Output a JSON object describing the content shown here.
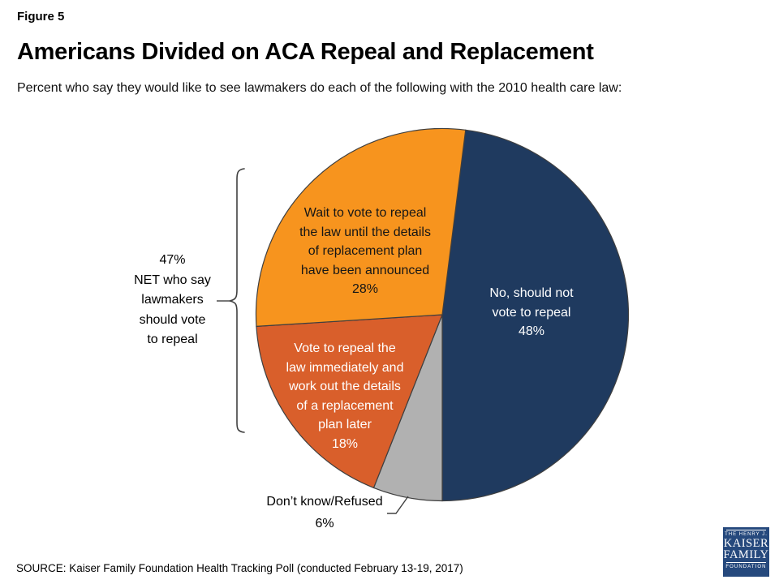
{
  "header": {
    "figure_label": "Figure 5",
    "title": "Americans Divided on ACA Repeal and Replacement",
    "subtitle": "Percent who say they would like to see lawmakers do each of the following with the 2010 health care law:"
  },
  "chart_data": {
    "type": "pie",
    "title": "Americans Divided on ACA Repeal and Replacement",
    "units": "percent",
    "direction": "clockwise",
    "start_angle_deg": 7.2,
    "stroke_color": "#3f3f3f",
    "slices": [
      {
        "id": "no-repeal",
        "label": "No, should not vote to repeal",
        "value": 48,
        "color": "#1F3A5F",
        "text_color": "#FFFFFF",
        "display": "No, should not\nvote to repeal\n48%"
      },
      {
        "id": "dont-know",
        "label": "Don’t know/Refused",
        "value": 6,
        "color": "#B1B1B1",
        "text_color": "#000000",
        "display": "Don’t know/Refused\n6%"
      },
      {
        "id": "repeal-immediately",
        "label": "Vote to repeal the law immediately and work out the details of a replacement plan later",
        "value": 18,
        "color": "#D95F2B",
        "text_color": "#FFFFFF",
        "display": "Vote to repeal the\nlaw immediately and\nwork out the details\nof a replacement\nplan later\n18%"
      },
      {
        "id": "wait-to-vote",
        "label": "Wait to vote to repeal the law until the details of replacement plan have been announced",
        "value": 28,
        "color": "#F7941E",
        "text_color": "#000000",
        "display": "Wait to vote to repeal\nthe law until the details\nof replacement plan\nhave been announced\n28%"
      }
    ],
    "annotation": {
      "net_value": 47,
      "net_label": "47%\nNET who say\nlawmakers\nshould vote\nto repeal"
    }
  },
  "footer": {
    "source": "SOURCE: Kaiser Family Foundation Health Tracking Poll (conducted February 13-19, 2017)",
    "logo": {
      "line1": "THE HENRY J.",
      "line2": "KAISER",
      "line3": "FAMILY",
      "line4": "FOUNDATION",
      "bg_color": "#26497D"
    }
  }
}
